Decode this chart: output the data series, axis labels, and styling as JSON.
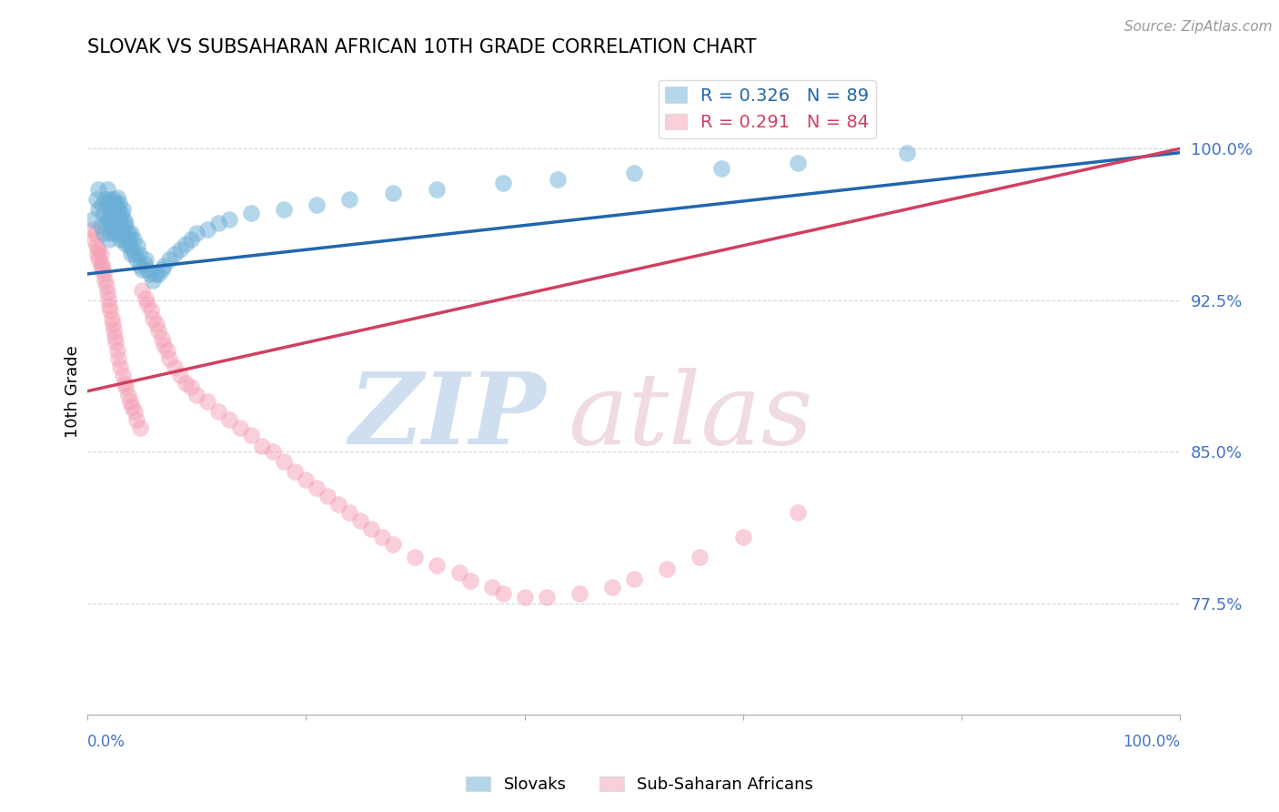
{
  "title": "SLOVAK VS SUBSAHARAN AFRICAN 10TH GRADE CORRELATION CHART",
  "source_text": "Source: ZipAtlas.com",
  "ylabel": "10th Grade",
  "ytick_labels": [
    "77.5%",
    "85.0%",
    "92.5%",
    "100.0%"
  ],
  "ytick_values": [
    0.775,
    0.85,
    0.925,
    1.0
  ],
  "xlim": [
    0.0,
    1.0
  ],
  "ylim": [
    0.72,
    1.04
  ],
  "legend_blue_label": "R = 0.326   N = 89",
  "legend_pink_label": "R = 0.291   N = 84",
  "blue_color": "#6baed6",
  "pink_color": "#f4a0b5",
  "blue_line_color": "#2166ac",
  "pink_line_color": "#d04060",
  "axis_label_color": "#4472c4",
  "slovaks_label": "Slovaks",
  "subsaharan_label": "Sub-Saharan Africans",
  "blue_trend_x": [
    0.0,
    1.0
  ],
  "blue_trend_y": [
    0.938,
    0.998
  ],
  "pink_trend_x": [
    0.0,
    1.0
  ],
  "pink_trend_y": [
    0.88,
    1.0
  ],
  "blue_x": [
    0.005,
    0.008,
    0.01,
    0.01,
    0.012,
    0.013,
    0.015,
    0.015,
    0.016,
    0.017,
    0.018,
    0.018,
    0.019,
    0.02,
    0.02,
    0.02,
    0.021,
    0.021,
    0.022,
    0.022,
    0.023,
    0.023,
    0.024,
    0.024,
    0.025,
    0.025,
    0.026,
    0.026,
    0.027,
    0.027,
    0.028,
    0.028,
    0.029,
    0.029,
    0.03,
    0.03,
    0.031,
    0.031,
    0.032,
    0.032,
    0.033,
    0.033,
    0.034,
    0.035,
    0.035,
    0.036,
    0.037,
    0.038,
    0.039,
    0.04,
    0.04,
    0.041,
    0.042,
    0.043,
    0.045,
    0.046,
    0.047,
    0.048,
    0.05,
    0.052,
    0.053,
    0.055,
    0.057,
    0.06,
    0.062,
    0.065,
    0.068,
    0.07,
    0.075,
    0.08,
    0.085,
    0.09,
    0.095,
    0.1,
    0.11,
    0.12,
    0.13,
    0.15,
    0.18,
    0.21,
    0.24,
    0.28,
    0.32,
    0.38,
    0.43,
    0.5,
    0.58,
    0.65,
    0.75
  ],
  "blue_y": [
    0.965,
    0.975,
    0.97,
    0.98,
    0.962,
    0.972,
    0.958,
    0.968,
    0.975,
    0.963,
    0.973,
    0.98,
    0.965,
    0.955,
    0.965,
    0.975,
    0.958,
    0.968,
    0.96,
    0.97,
    0.962,
    0.972,
    0.965,
    0.975,
    0.958,
    0.968,
    0.963,
    0.973,
    0.966,
    0.976,
    0.96,
    0.97,
    0.963,
    0.973,
    0.955,
    0.965,
    0.958,
    0.968,
    0.96,
    0.97,
    0.955,
    0.965,
    0.962,
    0.953,
    0.963,
    0.956,
    0.958,
    0.952,
    0.955,
    0.948,
    0.958,
    0.95,
    0.955,
    0.948,
    0.945,
    0.952,
    0.948,
    0.942,
    0.94,
    0.943,
    0.945,
    0.94,
    0.938,
    0.935,
    0.938,
    0.938,
    0.94,
    0.942,
    0.945,
    0.948,
    0.95,
    0.953,
    0.955,
    0.958,
    0.96,
    0.963,
    0.965,
    0.968,
    0.97,
    0.972,
    0.975,
    0.978,
    0.98,
    0.983,
    0.985,
    0.988,
    0.99,
    0.993,
    0.998
  ],
  "pink_x": [
    0.005,
    0.006,
    0.007,
    0.008,
    0.009,
    0.01,
    0.01,
    0.012,
    0.012,
    0.013,
    0.014,
    0.015,
    0.016,
    0.017,
    0.018,
    0.019,
    0.02,
    0.021,
    0.022,
    0.023,
    0.024,
    0.025,
    0.026,
    0.027,
    0.028,
    0.03,
    0.032,
    0.034,
    0.035,
    0.037,
    0.039,
    0.041,
    0.043,
    0.045,
    0.048,
    0.05,
    0.053,
    0.055,
    0.058,
    0.06,
    0.063,
    0.065,
    0.068,
    0.07,
    0.073,
    0.075,
    0.08,
    0.085,
    0.09,
    0.095,
    0.1,
    0.11,
    0.12,
    0.13,
    0.14,
    0.15,
    0.16,
    0.17,
    0.18,
    0.19,
    0.2,
    0.21,
    0.22,
    0.23,
    0.24,
    0.25,
    0.26,
    0.27,
    0.28,
    0.3,
    0.32,
    0.34,
    0.35,
    0.37,
    0.38,
    0.4,
    0.42,
    0.45,
    0.48,
    0.5,
    0.53,
    0.56,
    0.6,
    0.65
  ],
  "pink_y": [
    0.96,
    0.955,
    0.958,
    0.952,
    0.948,
    0.945,
    0.95,
    0.942,
    0.948,
    0.943,
    0.94,
    0.938,
    0.935,
    0.932,
    0.929,
    0.926,
    0.922,
    0.92,
    0.916,
    0.913,
    0.91,
    0.907,
    0.904,
    0.9,
    0.896,
    0.892,
    0.888,
    0.884,
    0.882,
    0.878,
    0.875,
    0.872,
    0.87,
    0.866,
    0.862,
    0.93,
    0.926,
    0.923,
    0.92,
    0.916,
    0.913,
    0.91,
    0.906,
    0.903,
    0.9,
    0.896,
    0.892,
    0.888,
    0.884,
    0.882,
    0.878,
    0.875,
    0.87,
    0.866,
    0.862,
    0.858,
    0.853,
    0.85,
    0.845,
    0.84,
    0.836,
    0.832,
    0.828,
    0.824,
    0.82,
    0.816,
    0.812,
    0.808,
    0.804,
    0.798,
    0.794,
    0.79,
    0.786,
    0.783,
    0.78,
    0.778,
    0.778,
    0.78,
    0.783,
    0.787,
    0.792,
    0.798,
    0.808,
    0.82
  ]
}
